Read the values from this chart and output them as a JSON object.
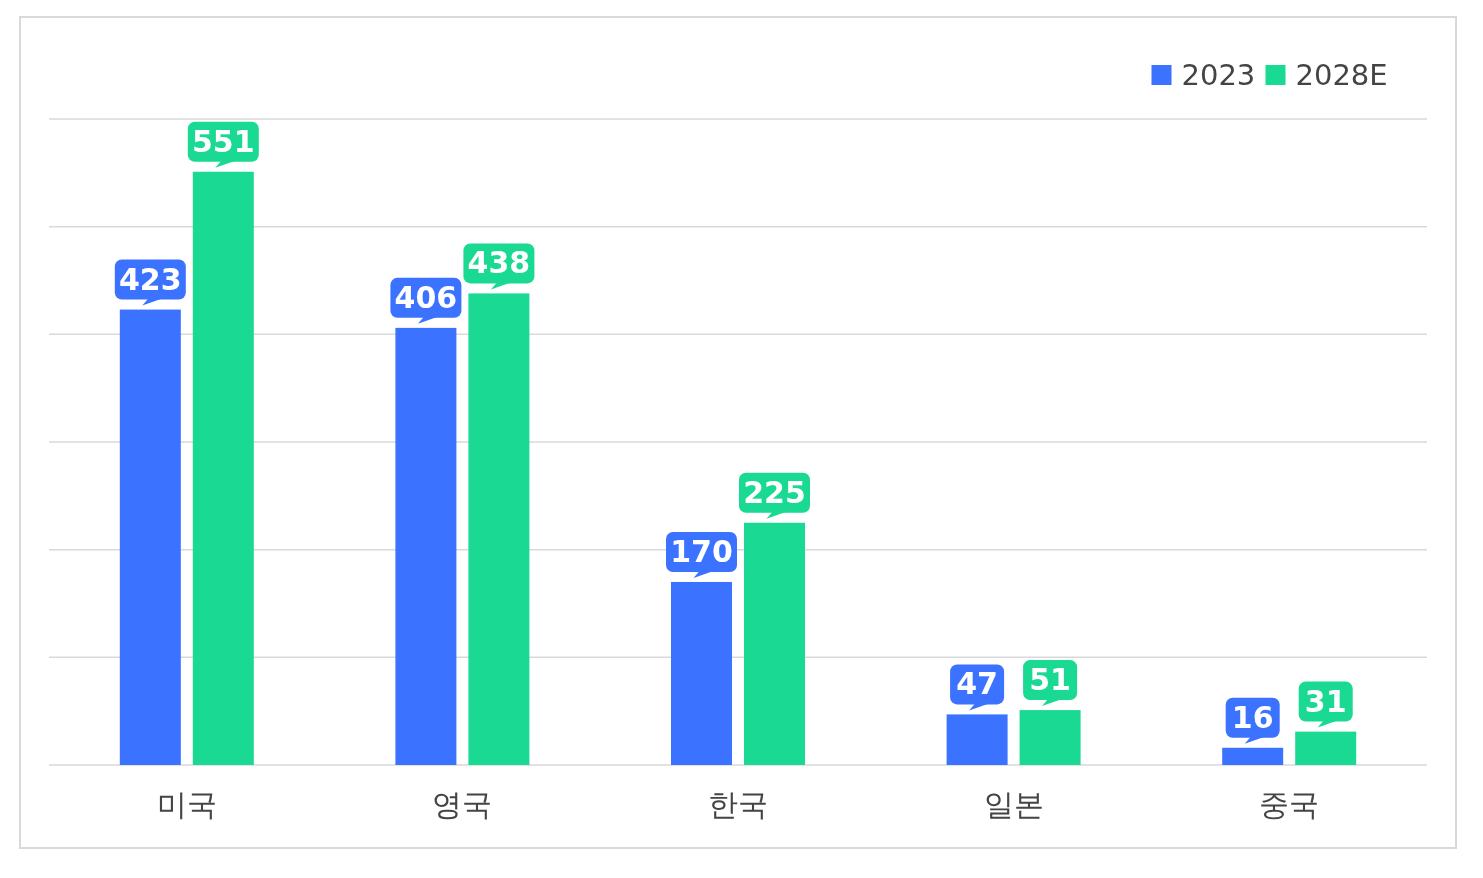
{
  "chart_data": {
    "type": "bar",
    "categories": [
      "미국",
      "영국",
      "한국",
      "일본",
      "중국"
    ],
    "series": [
      {
        "name": "2023",
        "color": "#3b72ff",
        "values": [
          423,
          406,
          170,
          47,
          16
        ]
      },
      {
        "name": "2028E",
        "color": "#19d993",
        "values": [
          551,
          438,
          225,
          51,
          31
        ]
      }
    ],
    "ylim": [
      0,
      600
    ],
    "yticks": [
      {
        "value": 0,
        "label": null
      },
      {
        "value": 100,
        "label": null
      },
      {
        "value": 200,
        "label": null
      },
      {
        "value": 300,
        "label": null
      },
      {
        "value": 400,
        "label": null
      },
      {
        "value": 500,
        "label": null
      },
      {
        "value": 600,
        "label": null
      }
    ],
    "tick_labels": "x",
    "grid": "y",
    "legend": "top right",
    "data_labels": true
  }
}
